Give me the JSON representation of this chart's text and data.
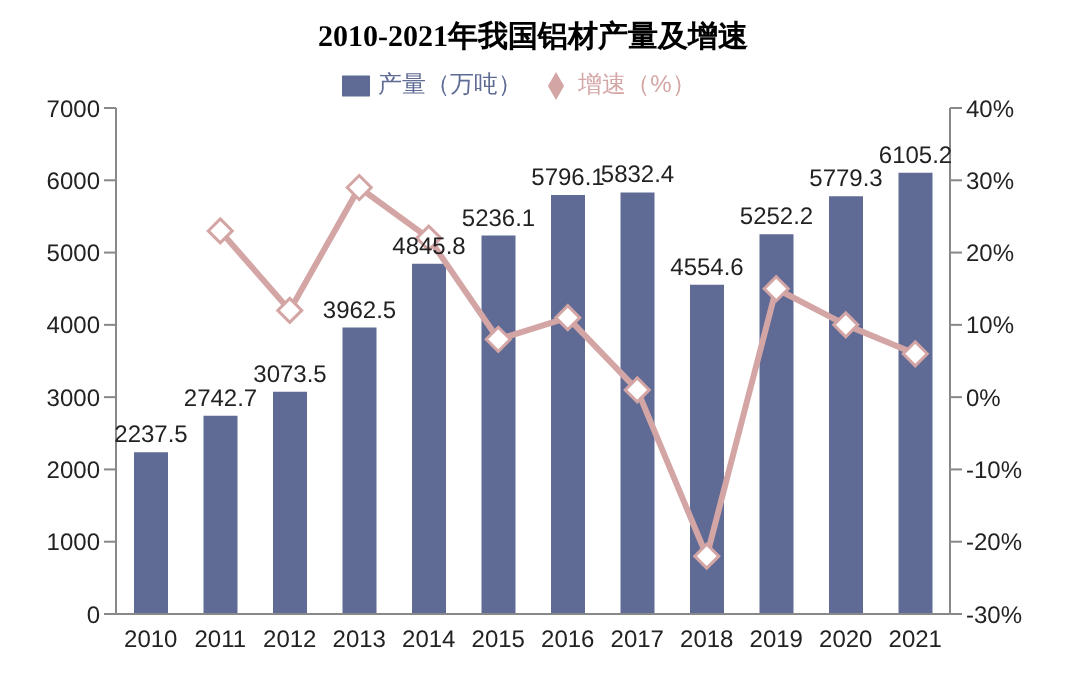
{
  "chart_data": {
    "type": "bar",
    "title": "2010-2021年我国铝材产量及增速",
    "categories": [
      "2010",
      "2011",
      "2012",
      "2013",
      "2014",
      "2015",
      "2016",
      "2017",
      "2018",
      "2019",
      "2020",
      "2021"
    ],
    "series": [
      {
        "name": "产量（万吨）",
        "color": "#5f6b94",
        "values": [
          2237.5,
          2742.7,
          3073.5,
          3962.5,
          4845.8,
          5236.1,
          5796.1,
          5832.4,
          4554.6,
          5252.2,
          5779.3,
          6105.2
        ],
        "value_labels": [
          "2237.5",
          "2742.7",
          "3073.5",
          "3962.5",
          "4845.8",
          "5236.1",
          "5796.1",
          "5832.4",
          "4554.6",
          "5252.2",
          "5779.3",
          "6105.2"
        ]
      },
      {
        "name": "增速（%）",
        "type": "line",
        "axis": "y2",
        "color": "#d4a5a5",
        "marker": "diamond",
        "values": [
          null,
          23,
          12,
          29,
          22,
          8,
          11,
          1,
          -22,
          15,
          10,
          6
        ]
      }
    ],
    "ylim": [
      0,
      7000
    ],
    "yticks": [
      0,
      1000,
      2000,
      3000,
      4000,
      5000,
      6000,
      7000
    ],
    "y2lim": [
      -30,
      40
    ],
    "y2ticks": [
      {
        "value": -30,
        "label": "-30%"
      },
      {
        "value": -20,
        "label": "-20%"
      },
      {
        "value": -10,
        "label": "-10%"
      },
      {
        "value": 0,
        "label": "0%"
      },
      {
        "value": 10,
        "label": "10%"
      },
      {
        "value": 20,
        "label": "20%"
      },
      {
        "value": 30,
        "label": "30%"
      },
      {
        "value": 40,
        "label": "40%"
      }
    ],
    "legend": "top",
    "grid": false
  }
}
